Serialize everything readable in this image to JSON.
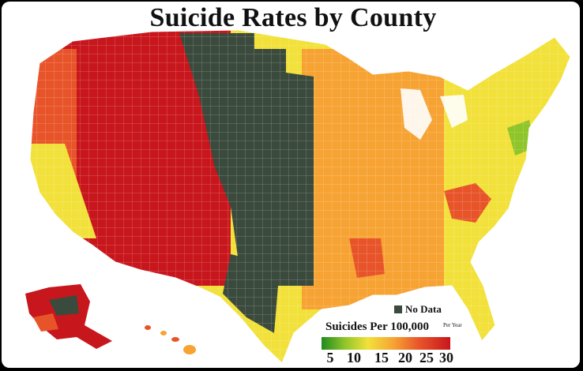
{
  "title": "Suicide Rates by County",
  "legend": {
    "no_data_label": "No Data",
    "no_data_color": "#3a4a3c",
    "scale_title": "Suicides Per 100,000",
    "scale_unit": "Per Year",
    "ticks": [
      "5",
      "10",
      "15",
      "20",
      "25",
      "30"
    ],
    "colors": [
      "#1f8a1f",
      "#8fc52a",
      "#f2e13a",
      "#f6a333",
      "#e8542a",
      "#c8161d"
    ]
  },
  "map": {
    "region_colors": {
      "west": "#c8161d",
      "pacific": "#e8542a",
      "plains_no_data": "#3a4a3c",
      "midwest": "#f6a333",
      "east": "#f2e13a",
      "lakes": "#ffffff"
    }
  }
}
